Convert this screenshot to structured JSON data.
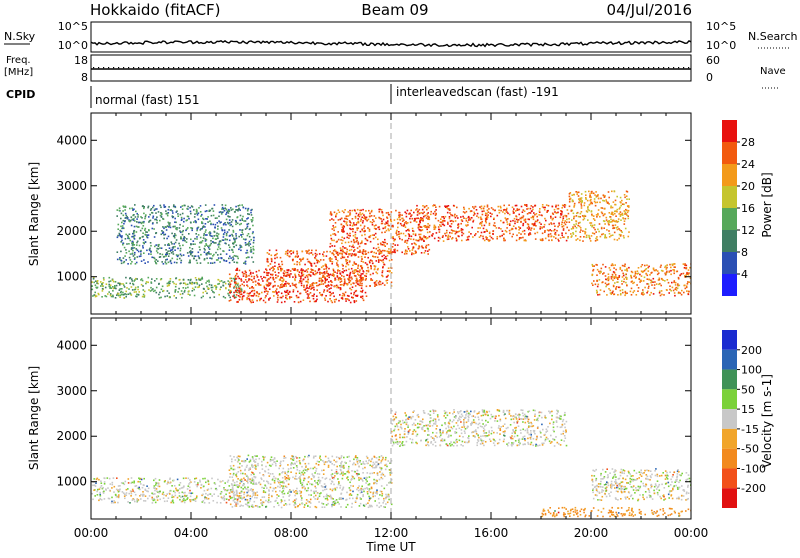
{
  "header": {
    "site": "Hokkaido (fitACF)",
    "beam": "Beam 09",
    "date": "04/Jul/2016"
  },
  "noise_panel": {
    "left_label": "N.Sky",
    "right_label": "N.Search",
    "yticks_left": [
      "10^5",
      "10^0"
    ],
    "yticks_right": [
      "10^5",
      "10^0"
    ]
  },
  "freq_panel": {
    "left_label_1": "Freq.",
    "left_label_2": "[MHz]",
    "right_label": "Nave",
    "yticks_left": [
      "18",
      "8"
    ],
    "yticks_right": [
      "60",
      "0"
    ]
  },
  "cpid": {
    "label": "CPID",
    "segments": [
      {
        "name": "normal (fast) 151",
        "start_hour": 0,
        "end_hour": 12
      },
      {
        "name": "interleavedscan (fast) -191",
        "start_hour": 12,
        "end_hour": 24
      }
    ]
  },
  "chart_data": [
    {
      "type": "heatmap",
      "panel": "power",
      "ylabel": "Slant Range [km]",
      "xlabel": "Time UT",
      "xlim_hours": [
        0,
        24
      ],
      "ylim": [
        180,
        4600
      ],
      "yticks": [
        1000,
        2000,
        3000,
        4000
      ],
      "xtick_labels": [
        "00:00",
        "04:00",
        "08:00",
        "12:00",
        "16:00",
        "20:00",
        "00:00"
      ],
      "colorbar": {
        "label": "Power [dB]",
        "ticks": [
          "4",
          "8",
          "12",
          "16",
          "20",
          "24",
          "28"
        ],
        "colors": [
          "#1d1dff",
          "#2a4fb4",
          "#3f7e63",
          "#56a85a",
          "#c5c52e",
          "#f39a1a",
          "#f25a0e",
          "#e8110e"
        ]
      },
      "echo_regions": [
        {
          "t0": 0.0,
          "t1": 6.0,
          "r0": 550,
          "r1": 1000,
          "value_db": 14
        },
        {
          "t0": 1.0,
          "t1": 6.5,
          "r0": 1300,
          "r1": 2600,
          "value_db": 10
        },
        {
          "t0": 5.5,
          "t1": 11.0,
          "r0": 450,
          "r1": 1200,
          "value_db": 28
        },
        {
          "t0": 7.0,
          "t1": 12.0,
          "r0": 800,
          "r1": 1600,
          "value_db": 26
        },
        {
          "t0": 9.5,
          "t1": 13.5,
          "r0": 1500,
          "r1": 2500,
          "value_db": 26
        },
        {
          "t0": 13.0,
          "t1": 19.0,
          "r0": 1800,
          "r1": 2600,
          "value_db": 26
        },
        {
          "t0": 19.0,
          "t1": 21.5,
          "r0": 1800,
          "r1": 2900,
          "value_db": 22
        },
        {
          "t0": 20.0,
          "t1": 24.0,
          "r0": 600,
          "r1": 1300,
          "value_db": 24
        }
      ]
    },
    {
      "type": "heatmap",
      "panel": "velocity",
      "ylabel": "Slant Range [km]",
      "xlabel": "Time UT",
      "xlim_hours": [
        0,
        24
      ],
      "ylim": [
        180,
        4600
      ],
      "yticks": [
        1000,
        2000,
        3000,
        4000
      ],
      "xtick_labels": [
        "00:00",
        "04:00",
        "08:00",
        "12:00",
        "16:00",
        "20:00",
        "00:00"
      ],
      "colorbar": {
        "label": "Velocity [m s-1]",
        "ticks": [
          "200",
          "100",
          "50",
          "15",
          "-15",
          "-50",
          "-100",
          "-200"
        ],
        "colors": [
          "#1a2bd0",
          "#2a65b5",
          "#3f9257",
          "#7bd13a",
          "#c8c8c8",
          "#f1a52a",
          "#f28a1e",
          "#f2501a",
          "#e11010"
        ]
      },
      "echo_regions": [
        {
          "t0": 0.0,
          "t1": 6.5,
          "r0": 550,
          "r1": 1100,
          "value_ms": 0
        },
        {
          "t0": 5.5,
          "t1": 12.0,
          "r0": 450,
          "r1": 1600,
          "value_ms": 0
        },
        {
          "t0": 12.0,
          "t1": 19.0,
          "r0": 1800,
          "r1": 2600,
          "value_ms": 0
        },
        {
          "t0": 18.0,
          "t1": 24.0,
          "r0": 250,
          "r1": 450,
          "value_ms": -60
        },
        {
          "t0": 20.0,
          "t1": 24.0,
          "r0": 600,
          "r1": 1300,
          "value_ms": 0
        }
      ]
    }
  ],
  "xaxis": {
    "label": "Time UT"
  }
}
